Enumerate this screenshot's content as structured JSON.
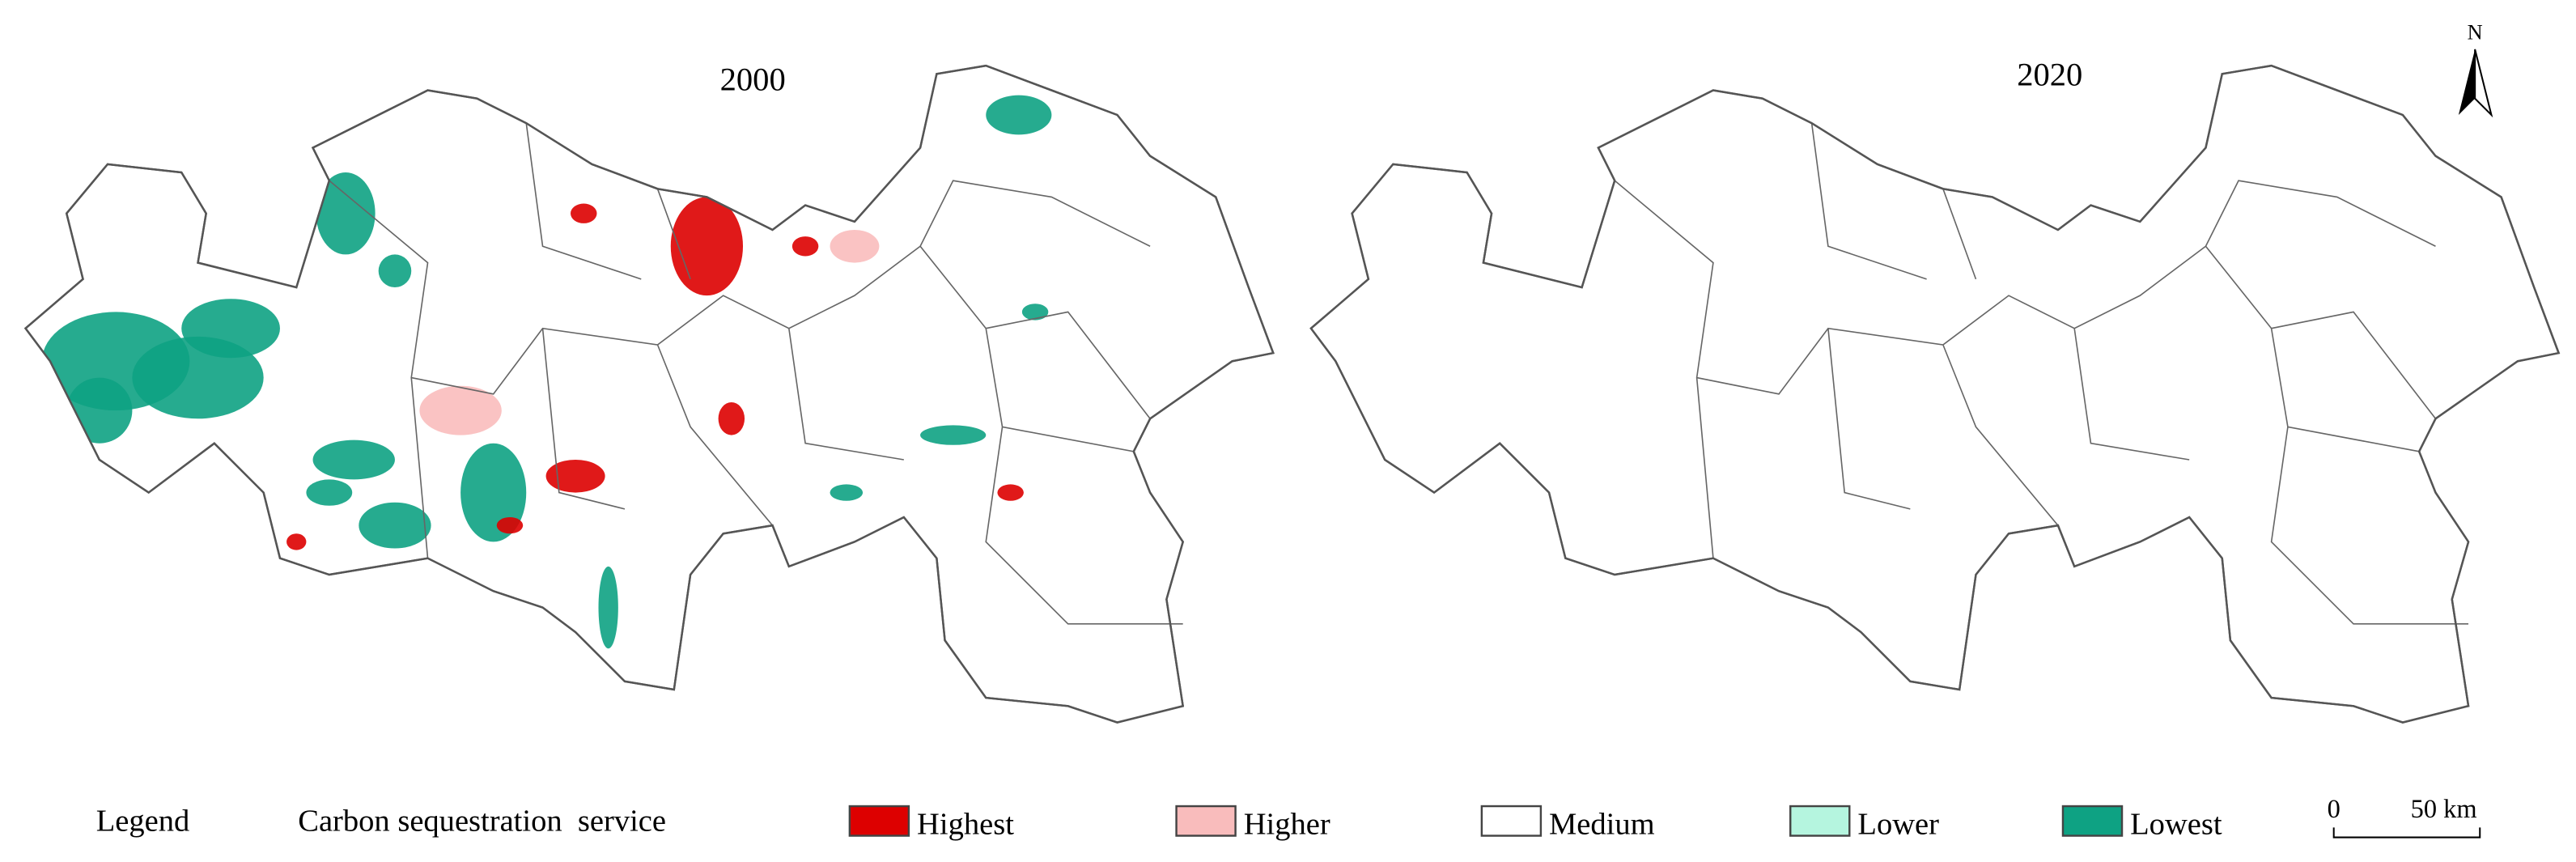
{
  "maps": [
    {
      "title": "2000"
    },
    {
      "title": "2020"
    }
  ],
  "north": "N",
  "legend": {
    "title": "Legend",
    "subtitle": "Carbon sequestration  service",
    "items": [
      {
        "label": "Highest",
        "color": "#dd0000"
      },
      {
        "label": "Higher",
        "color": "#f9bcbc"
      },
      {
        "label": "Medium",
        "color": "#ffffff"
      },
      {
        "label": "Lower",
        "color": "#b5f5df"
      },
      {
        "label": "Lowest",
        "color": "#0ea283"
      }
    ]
  },
  "scale": {
    "start": "0",
    "end": "50 km"
  }
}
